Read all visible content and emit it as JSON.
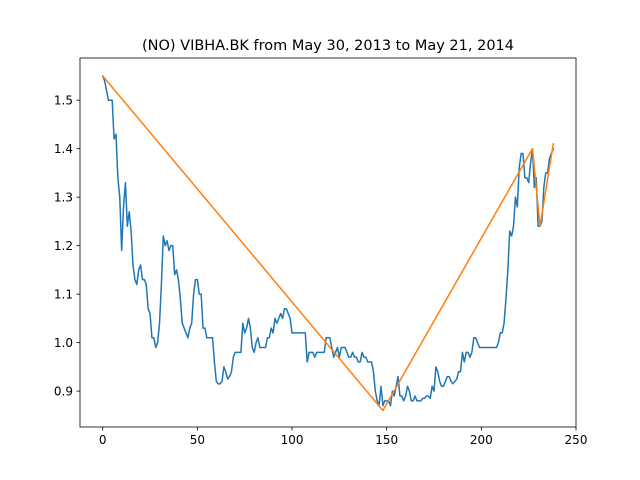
{
  "chart_data": {
    "type": "line",
    "title": "(NO) VIBHA.BK from May 30, 2013 to May 21, 2014",
    "xlabel": "",
    "ylabel": "",
    "xlim": [
      -12,
      250
    ],
    "ylim": [
      0.826,
      1.587
    ],
    "x_ticks": [
      0,
      50,
      100,
      150,
      200,
      250
    ],
    "y_ticks": [
      0.9,
      1.0,
      1.1,
      1.2,
      1.3,
      1.4,
      1.5
    ],
    "grid": false,
    "legend": "none",
    "series": [
      {
        "color": "#1f77b4",
        "points": [
          [
            0,
            1.55
          ],
          [
            1,
            1.54
          ],
          [
            2,
            1.52
          ],
          [
            3,
            1.5
          ],
          [
            4,
            1.5
          ],
          [
            5,
            1.5
          ],
          [
            6,
            1.42
          ],
          [
            7,
            1.43
          ],
          [
            8,
            1.34
          ],
          [
            9,
            1.3
          ],
          [
            10,
            1.19
          ],
          [
            11,
            1.28
          ],
          [
            12,
            1.33
          ],
          [
            13,
            1.24
          ],
          [
            14,
            1.27
          ],
          [
            15,
            1.23
          ],
          [
            16,
            1.16
          ],
          [
            17,
            1.13
          ],
          [
            18,
            1.12
          ],
          [
            19,
            1.15
          ],
          [
            20,
            1.16
          ],
          [
            21,
            1.13
          ],
          [
            22,
            1.13
          ],
          [
            23,
            1.12
          ],
          [
            24,
            1.07
          ],
          [
            25,
            1.06
          ],
          [
            26,
            1.01
          ],
          [
            27,
            1.01
          ],
          [
            28,
            0.99
          ],
          [
            29,
            1.0
          ],
          [
            30,
            1.04
          ],
          [
            31,
            1.12
          ],
          [
            32,
            1.22
          ],
          [
            33,
            1.2
          ],
          [
            34,
            1.21
          ],
          [
            35,
            1.19
          ],
          [
            36,
            1.2
          ],
          [
            37,
            1.2
          ],
          [
            38,
            1.14
          ],
          [
            39,
            1.15
          ],
          [
            40,
            1.13
          ],
          [
            41,
            1.09
          ],
          [
            42,
            1.04
          ],
          [
            43,
            1.03
          ],
          [
            44,
            1.02
          ],
          [
            45,
            1.01
          ],
          [
            46,
            1.03
          ],
          [
            47,
            1.04
          ],
          [
            48,
            1.1
          ],
          [
            49,
            1.13
          ],
          [
            50,
            1.13
          ],
          [
            51,
            1.1
          ],
          [
            52,
            1.1
          ],
          [
            53,
            1.03
          ],
          [
            54,
            1.03
          ],
          [
            55,
            1.01
          ],
          [
            56,
            1.01
          ],
          [
            57,
            1.01
          ],
          [
            58,
            1.01
          ],
          [
            59,
            0.96
          ],
          [
            60,
            0.92
          ],
          [
            61,
            0.915
          ],
          [
            62,
            0.915
          ],
          [
            63,
            0.92
          ],
          [
            64,
            0.95
          ],
          [
            65,
            0.94
          ],
          [
            66,
            0.925
          ],
          [
            67,
            0.93
          ],
          [
            68,
            0.94
          ],
          [
            69,
            0.97
          ],
          [
            70,
            0.98
          ],
          [
            71,
            0.98
          ],
          [
            72,
            0.98
          ],
          [
            73,
            0.98
          ],
          [
            74,
            1.04
          ],
          [
            75,
            1.02
          ],
          [
            76,
            1.03
          ],
          [
            77,
            1.05
          ],
          [
            78,
            1.03
          ],
          [
            79,
            0.99
          ],
          [
            80,
            0.98
          ],
          [
            81,
            1.0
          ],
          [
            82,
            1.01
          ],
          [
            83,
            0.99
          ],
          [
            84,
            0.99
          ],
          [
            85,
            0.99
          ],
          [
            86,
            0.99
          ],
          [
            87,
            1.01
          ],
          [
            88,
            1.01
          ],
          [
            89,
            1.03
          ],
          [
            90,
            1.02
          ],
          [
            91,
            1.05
          ],
          [
            92,
            1.04
          ],
          [
            93,
            1.05
          ],
          [
            94,
            1.06
          ],
          [
            95,
            1.05
          ],
          [
            96,
            1.07
          ],
          [
            97,
            1.07
          ],
          [
            98,
            1.06
          ],
          [
            99,
            1.05
          ],
          [
            100,
            1.02
          ],
          [
            101,
            1.02
          ],
          [
            102,
            1.02
          ],
          [
            103,
            1.02
          ],
          [
            104,
            1.02
          ],
          [
            105,
            1.02
          ],
          [
            106,
            1.02
          ],
          [
            107,
            1.02
          ],
          [
            108,
            0.96
          ],
          [
            109,
            0.98
          ],
          [
            110,
            0.98
          ],
          [
            111,
            0.98
          ],
          [
            112,
            0.97
          ],
          [
            113,
            0.98
          ],
          [
            114,
            0.98
          ],
          [
            115,
            0.98
          ],
          [
            116,
            0.98
          ],
          [
            117,
            0.98
          ],
          [
            118,
            1.01
          ],
          [
            119,
            1.01
          ],
          [
            120,
            1.01
          ],
          [
            121,
            0.99
          ],
          [
            122,
            0.97
          ],
          [
            123,
            0.98
          ],
          [
            124,
            0.99
          ],
          [
            125,
            0.97
          ],
          [
            126,
            0.99
          ],
          [
            127,
            0.99
          ],
          [
            128,
            0.99
          ],
          [
            129,
            0.98
          ],
          [
            130,
            0.97
          ],
          [
            131,
            0.97
          ],
          [
            132,
            0.98
          ],
          [
            133,
            0.97
          ],
          [
            134,
            0.97
          ],
          [
            135,
            0.96
          ],
          [
            136,
            0.96
          ],
          [
            137,
            0.98
          ],
          [
            138,
            0.97
          ],
          [
            139,
            0.97
          ],
          [
            140,
            0.96
          ],
          [
            141,
            0.96
          ],
          [
            142,
            0.96
          ],
          [
            143,
            0.94
          ],
          [
            144,
            0.9
          ],
          [
            145,
            0.88
          ],
          [
            146,
            0.87
          ],
          [
            147,
            0.91
          ],
          [
            148,
            0.87
          ],
          [
            149,
            0.88
          ],
          [
            150,
            0.88
          ],
          [
            151,
            0.88
          ],
          [
            152,
            0.87
          ],
          [
            153,
            0.9
          ],
          [
            154,
            0.89
          ],
          [
            155,
            0.91
          ],
          [
            156,
            0.93
          ],
          [
            157,
            0.89
          ],
          [
            158,
            0.89
          ],
          [
            159,
            0.88
          ],
          [
            160,
            0.89
          ],
          [
            161,
            0.91
          ],
          [
            162,
            0.9
          ],
          [
            163,
            0.88
          ],
          [
            164,
            0.88
          ],
          [
            165,
            0.89
          ],
          [
            166,
            0.88
          ],
          [
            167,
            0.88
          ],
          [
            168,
            0.88
          ],
          [
            169,
            0.885
          ],
          [
            170,
            0.885
          ],
          [
            171,
            0.89
          ],
          [
            172,
            0.89
          ],
          [
            173,
            0.885
          ],
          [
            174,
            0.91
          ],
          [
            175,
            0.9
          ],
          [
            176,
            0.95
          ],
          [
            177,
            0.94
          ],
          [
            178,
            0.92
          ],
          [
            179,
            0.91
          ],
          [
            180,
            0.91
          ],
          [
            181,
            0.92
          ],
          [
            182,
            0.93
          ],
          [
            183,
            0.93
          ],
          [
            184,
            0.92
          ],
          [
            185,
            0.915
          ],
          [
            186,
            0.92
          ],
          [
            187,
            0.925
          ],
          [
            188,
            0.94
          ],
          [
            189,
            0.94
          ],
          [
            190,
            0.98
          ],
          [
            191,
            0.96
          ],
          [
            192,
            0.98
          ],
          [
            193,
            0.98
          ],
          [
            194,
            0.97
          ],
          [
            195,
            0.98
          ],
          [
            196,
            1.01
          ],
          [
            197,
            1.01
          ],
          [
            198,
            1.0
          ],
          [
            199,
            0.99
          ],
          [
            200,
            0.99
          ],
          [
            201,
            0.99
          ],
          [
            202,
            0.99
          ],
          [
            203,
            0.99
          ],
          [
            204,
            0.99
          ],
          [
            205,
            0.99
          ],
          [
            206,
            0.99
          ],
          [
            207,
            0.99
          ],
          [
            208,
            0.99
          ],
          [
            209,
            1.0
          ],
          [
            210,
            1.02
          ],
          [
            211,
            1.02
          ],
          [
            212,
            1.04
          ],
          [
            213,
            1.09
          ],
          [
            214,
            1.15
          ],
          [
            215,
            1.23
          ],
          [
            216,
            1.22
          ],
          [
            217,
            1.24
          ],
          [
            218,
            1.3
          ],
          [
            219,
            1.28
          ],
          [
            220,
            1.36
          ],
          [
            221,
            1.39
          ],
          [
            222,
            1.39
          ],
          [
            223,
            1.34
          ],
          [
            224,
            1.34
          ],
          [
            225,
            1.33
          ],
          [
            226,
            1.37
          ],
          [
            227,
            1.4
          ],
          [
            228,
            1.32
          ],
          [
            229,
            1.34
          ],
          [
            230,
            1.24
          ],
          [
            231,
            1.24
          ],
          [
            232,
            1.25
          ],
          [
            233,
            1.32
          ],
          [
            234,
            1.35
          ],
          [
            235,
            1.35
          ],
          [
            236,
            1.38
          ],
          [
            237,
            1.39
          ],
          [
            238,
            1.4
          ]
        ]
      },
      {
        "color": "#ff7f0e",
        "points": [
          [
            0,
            1.55
          ],
          [
            148,
            0.86
          ],
          [
            227,
            1.4
          ],
          [
            231,
            1.24
          ],
          [
            238,
            1.41
          ]
        ]
      }
    ]
  }
}
